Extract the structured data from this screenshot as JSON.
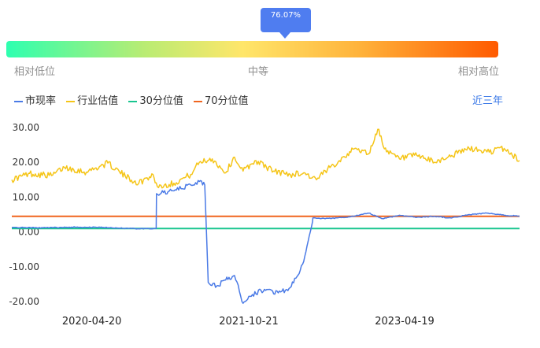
{
  "indicator": {
    "value_label": "76.07%",
    "percentile": 0.7607
  },
  "levels": {
    "low": "相对低位",
    "mid": "中等",
    "high": "相对高位"
  },
  "range_button": "近三年",
  "colors": {
    "current": "#4a7ae6",
    "industry": "#f5c518",
    "p30": "#19c58f",
    "p70": "#f0651f",
    "accent": "#3a78e7"
  },
  "chart_data": {
    "type": "line",
    "title": "",
    "ylim": [
      -22,
      32
    ],
    "yticks": [
      30,
      20,
      10,
      0,
      -10,
      -20
    ],
    "ytick_labels": [
      "30.00",
      "20.00",
      "10.00",
      "0.00",
      "-10.00",
      "-20.00"
    ],
    "xlim": [
      "2019-07-15",
      "2024-05-25"
    ],
    "xticks": [
      "2020-04-20",
      "2021-10-21",
      "2023-04-19"
    ],
    "series": [
      {
        "name": "市现率",
        "color": "#4a7ae6",
        "x": [
          "2019-07-15",
          "2019-11-01",
          "2020-03-01",
          "2020-06-01",
          "2020-10-01",
          "2020-12-01",
          "2020-12-02",
          "2021-02-01",
          "2021-04-01",
          "2021-05-01",
          "2021-05-20",
          "2021-06-01",
          "2021-07-01",
          "2021-08-01",
          "2021-09-01",
          "2021-10-01",
          "2021-10-21",
          "2021-12-15",
          "2022-02-01",
          "2022-03-15",
          "2022-04-15",
          "2022-05-01",
          "2022-06-01",
          "2022-06-02",
          "2022-07-15",
          "2022-10-01",
          "2022-12-15",
          "2023-02-01",
          "2023-04-01",
          "2023-06-01",
          "2023-08-01",
          "2023-10-01",
          "2023-12-01",
          "2024-02-01",
          "2024-04-01",
          "2024-05-25"
        ],
        "y": [
          1.3,
          1.2,
          1.4,
          1.3,
          0.9,
          1.0,
          11.0,
          11.8,
          13.5,
          14.5,
          13.5,
          -14.5,
          -15.5,
          -13.8,
          -12.5,
          -20.5,
          -18.5,
          -16.5,
          -17.5,
          -16.0,
          -12.0,
          -8.5,
          3.0,
          4.0,
          3.8,
          4.2,
          5.4,
          3.8,
          4.8,
          4.2,
          4.5,
          4.0,
          5.0,
          5.4,
          4.8,
          4.6
        ]
      },
      {
        "name": "行业估值",
        "color": "#f5c518",
        "x": [
          "2019-07-15",
          "2019-09-15",
          "2019-12-01",
          "2020-01-15",
          "2020-04-01",
          "2020-06-15",
          "2020-08-15",
          "2020-10-01",
          "2020-11-20",
          "2020-12-05",
          "2021-02-01",
          "2021-04-01",
          "2021-05-01",
          "2021-06-15",
          "2021-08-01",
          "2021-09-01",
          "2021-10-01",
          "2021-11-15",
          "2022-01-15",
          "2022-03-15",
          "2022-05-01",
          "2022-06-15",
          "2022-08-01",
          "2022-10-01",
          "2022-11-01",
          "2022-12-15",
          "2023-01-15",
          "2023-02-15",
          "2023-04-01",
          "2023-06-01",
          "2023-08-01",
          "2023-10-01",
          "2023-12-01",
          "2024-02-01",
          "2024-04-01",
          "2024-05-25"
        ],
        "y": [
          15.0,
          16.8,
          16.2,
          18.6,
          17.2,
          19.8,
          16.0,
          14.0,
          16.5,
          13.0,
          14.0,
          16.5,
          20.0,
          21.0,
          17.0,
          21.5,
          17.5,
          20.5,
          17.5,
          16.5,
          17.0,
          15.0,
          18.5,
          22.5,
          24.0,
          22.5,
          29.5,
          23.0,
          21.0,
          22.0,
          20.0,
          22.0,
          24.0,
          23.0,
          24.0,
          20.5
        ]
      },
      {
        "name": "30分位值",
        "color": "#19c58f",
        "x": [
          "2019-07-15",
          "2024-05-25"
        ],
        "y": [
          1.0,
          1.0
        ]
      },
      {
        "name": "70分位值",
        "color": "#f0651f",
        "x": [
          "2019-07-15",
          "2024-05-25"
        ],
        "y": [
          4.5,
          4.5
        ]
      }
    ]
  }
}
